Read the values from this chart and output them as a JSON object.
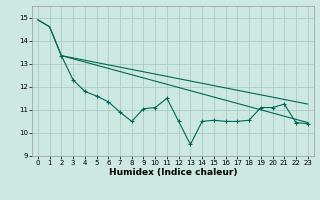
{
  "xlabel": "Humidex (Indice chaleur)",
  "background_color": "#cce8e0",
  "grid_color": "#aaccc4",
  "line_color": "#006655",
  "xlim": [
    -0.5,
    23.5
  ],
  "ylim": [
    9.0,
    15.5
  ],
  "yticks": [
    9,
    10,
    11,
    12,
    13,
    14,
    15
  ],
  "xticks": [
    0,
    1,
    2,
    3,
    4,
    5,
    6,
    7,
    8,
    9,
    10,
    11,
    12,
    13,
    14,
    15,
    16,
    17,
    18,
    19,
    20,
    21,
    22,
    23
  ],
  "line1_x": [
    0,
    1,
    2,
    23
  ],
  "line1_y": [
    14.9,
    14.6,
    13.35,
    10.45
  ],
  "line2_x": [
    0,
    1,
    2,
    23
  ],
  "line2_y": [
    14.9,
    14.6,
    13.35,
    11.25
  ],
  "line3_x": [
    2,
    3,
    4,
    5,
    6,
    7,
    8,
    9,
    10,
    11,
    12,
    13,
    14,
    15,
    16,
    17,
    18,
    19,
    20,
    21,
    22,
    23
  ],
  "line3_y": [
    13.35,
    12.3,
    11.8,
    11.6,
    11.35,
    10.9,
    10.5,
    11.05,
    11.1,
    11.5,
    10.5,
    9.5,
    10.5,
    10.55,
    10.5,
    10.5,
    10.55,
    11.1,
    11.1,
    11.25,
    10.45,
    10.4
  ],
  "ylabel_fontsize": 5.5,
  "xlabel_fontsize": 6.5,
  "tick_fontsize": 5.0
}
